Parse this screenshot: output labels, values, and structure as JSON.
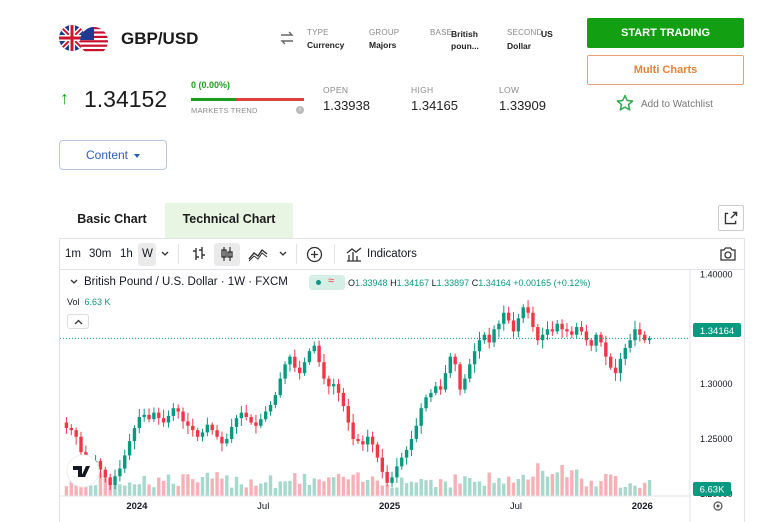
{
  "header": {
    "symbol": "GBP/USD",
    "meta": [
      {
        "label": "TYPE",
        "value": "Currency"
      },
      {
        "label": "GROUP",
        "value": "Majors"
      },
      {
        "label": "BASE",
        "value": "British poun..."
      },
      {
        "label": "SECOND",
        "value": "US Dollar"
      }
    ],
    "price": "1.34152",
    "change": "0 (0.00%)",
    "markets_trend_label": "MARKETS TREND",
    "stats": [
      {
        "label": "OPEN",
        "value": "1.33938"
      },
      {
        "label": "HIGH",
        "value": "1.34165"
      },
      {
        "label": "LOW",
        "value": "1.33909"
      }
    ],
    "start_trading_label": "START TRADING",
    "multi_charts_label": "Multi Charts",
    "watchlist_label": "Add to Watchlist",
    "content_label": "Content"
  },
  "tabs": [
    {
      "label": "Basic Chart",
      "active": false
    },
    {
      "label": "Technical Chart",
      "active": true
    }
  ],
  "toolbar": {
    "intervals": [
      "1m",
      "30m",
      "1h",
      "W"
    ],
    "indicators_label": "Indicators"
  },
  "legend": {
    "title": "British Pound / U.S. Dollar · 1W · FXCM",
    "o_label": "O",
    "o_value": "1.33948",
    "h_label": "H",
    "h_value": "1.34167",
    "l_label": "L",
    "l_value": "1.33897",
    "c_label": "C",
    "c_value": "1.34164",
    "change_value": "+0.00165 (+0.12%)",
    "vol_label": "Vol",
    "vol_value": "6.63 K"
  },
  "chart_data": {
    "type": "candlestick",
    "y_ticks": [
      "1.40000",
      "1.35000",
      "1.30000",
      "1.25000",
      "1.20000"
    ],
    "y_tick_values": [
      1.4,
      1.35,
      1.3,
      1.25,
      1.2
    ],
    "ylim": [
      1.198,
      1.404
    ],
    "x_ticks": [
      "2024",
      "Jul",
      "2025",
      "Jul",
      "2026"
    ],
    "x_tick_index": [
      15,
      41,
      67,
      93,
      119
    ],
    "last_price_label": "1.34164",
    "last_price": 1.34164,
    "volume_label": "6.63K",
    "colors": {
      "up": "#089981",
      "down": "#f23645",
      "vol_up": "#a6d8cc",
      "vol_down": "#f7b1b6"
    },
    "closes": [
      1.26,
      1.258,
      1.252,
      1.238,
      1.22,
      1.225,
      1.23,
      1.222,
      1.215,
      1.208,
      1.216,
      1.223,
      1.235,
      1.248,
      1.26,
      1.27,
      1.272,
      1.268,
      1.274,
      1.269,
      1.265,
      1.271,
      1.278,
      1.275,
      1.266,
      1.262,
      1.258,
      1.252,
      1.256,
      1.263,
      1.258,
      1.252,
      1.246,
      1.25,
      1.261,
      1.269,
      1.274,
      1.27,
      1.265,
      1.262,
      1.268,
      1.275,
      1.281,
      1.29,
      1.305,
      1.318,
      1.325,
      1.315,
      1.31,
      1.32,
      1.33,
      1.335,
      1.32,
      1.305,
      1.298,
      1.3,
      1.292,
      1.28,
      1.265,
      1.25,
      1.248,
      1.245,
      1.252,
      1.245,
      1.233,
      1.22,
      1.21,
      1.215,
      1.225,
      1.233,
      1.24,
      1.25,
      1.262,
      1.278,
      1.288,
      1.292,
      1.298,
      1.295,
      1.31,
      1.325,
      1.318,
      1.295,
      1.305,
      1.318,
      1.33,
      1.34,
      1.345,
      1.338,
      1.35,
      1.355,
      1.365,
      1.358,
      1.348,
      1.36,
      1.37,
      1.365,
      1.352,
      1.34,
      1.345,
      1.35,
      1.348,
      1.355,
      1.35,
      1.348,
      1.345,
      1.352,
      1.348,
      1.34,
      1.335,
      1.345,
      1.338,
      1.325,
      1.315,
      1.31,
      1.323,
      1.333,
      1.34,
      1.35,
      1.345,
      1.34,
      1.3416
    ]
  }
}
